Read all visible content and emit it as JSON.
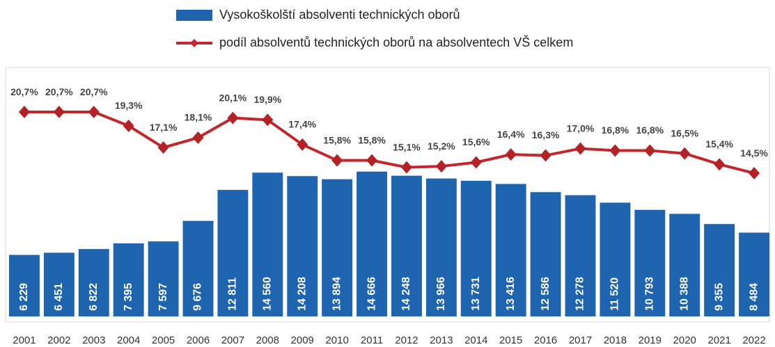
{
  "chart_data": {
    "type": "bar-line",
    "categories": [
      "2001",
      "2002",
      "2003",
      "2004",
      "2005",
      "2006",
      "2007",
      "2008",
      "2009",
      "2010",
      "2011",
      "2012",
      "2013",
      "2014",
      "2015",
      "2016",
      "2017",
      "2018",
      "2019",
      "2020",
      "2021",
      "2022"
    ],
    "series": [
      {
        "name": "Vysokoškolští absolventi technických oborů",
        "type": "bar",
        "color": "#1f64ae",
        "values": [
          6229,
          6451,
          6822,
          7395,
          7597,
          9676,
          12811,
          14560,
          14208,
          13894,
          14666,
          14248,
          13966,
          13731,
          13416,
          12586,
          12278,
          11520,
          10793,
          10388,
          9355,
          8484
        ],
        "value_labels": [
          "6 229",
          "6 451",
          "6 822",
          "7 395",
          "7 597",
          "9 676",
          "12 811",
          "14 560",
          "14 208",
          "13 894",
          "14 666",
          "14 248",
          "13 966",
          "13 731",
          "13 416",
          "12 586",
          "12 278",
          "11 520",
          "10 793",
          "10 388",
          "9 355",
          "8 484"
        ]
      },
      {
        "name": "podíl absolventů technických oborů na absolventech VŠ celkem",
        "type": "line",
        "axis": "y2",
        "color": "#c0282d",
        "values": [
          20.7,
          20.7,
          20.7,
          19.3,
          17.1,
          18.1,
          20.1,
          19.9,
          17.4,
          15.8,
          15.8,
          15.1,
          15.2,
          15.6,
          16.4,
          16.3,
          17.0,
          16.8,
          16.8,
          16.5,
          15.4,
          14.5
        ],
        "value_labels": [
          "20,7%",
          "20,7%",
          "20,7%",
          "19,3%",
          "17,1%",
          "18,1%",
          "20,1%",
          "19,9%",
          "17,4%",
          "15,8%",
          "15,8%",
          "15,1%",
          "15,2%",
          "15,6%",
          "16,4%",
          "16,3%",
          "17,0%",
          "16,8%",
          "16,8%",
          "16,5%",
          "15,4%",
          "14,5%"
        ]
      }
    ],
    "ylim": [
      0,
      25000
    ],
    "y2lim": [
      0,
      25
    ]
  }
}
